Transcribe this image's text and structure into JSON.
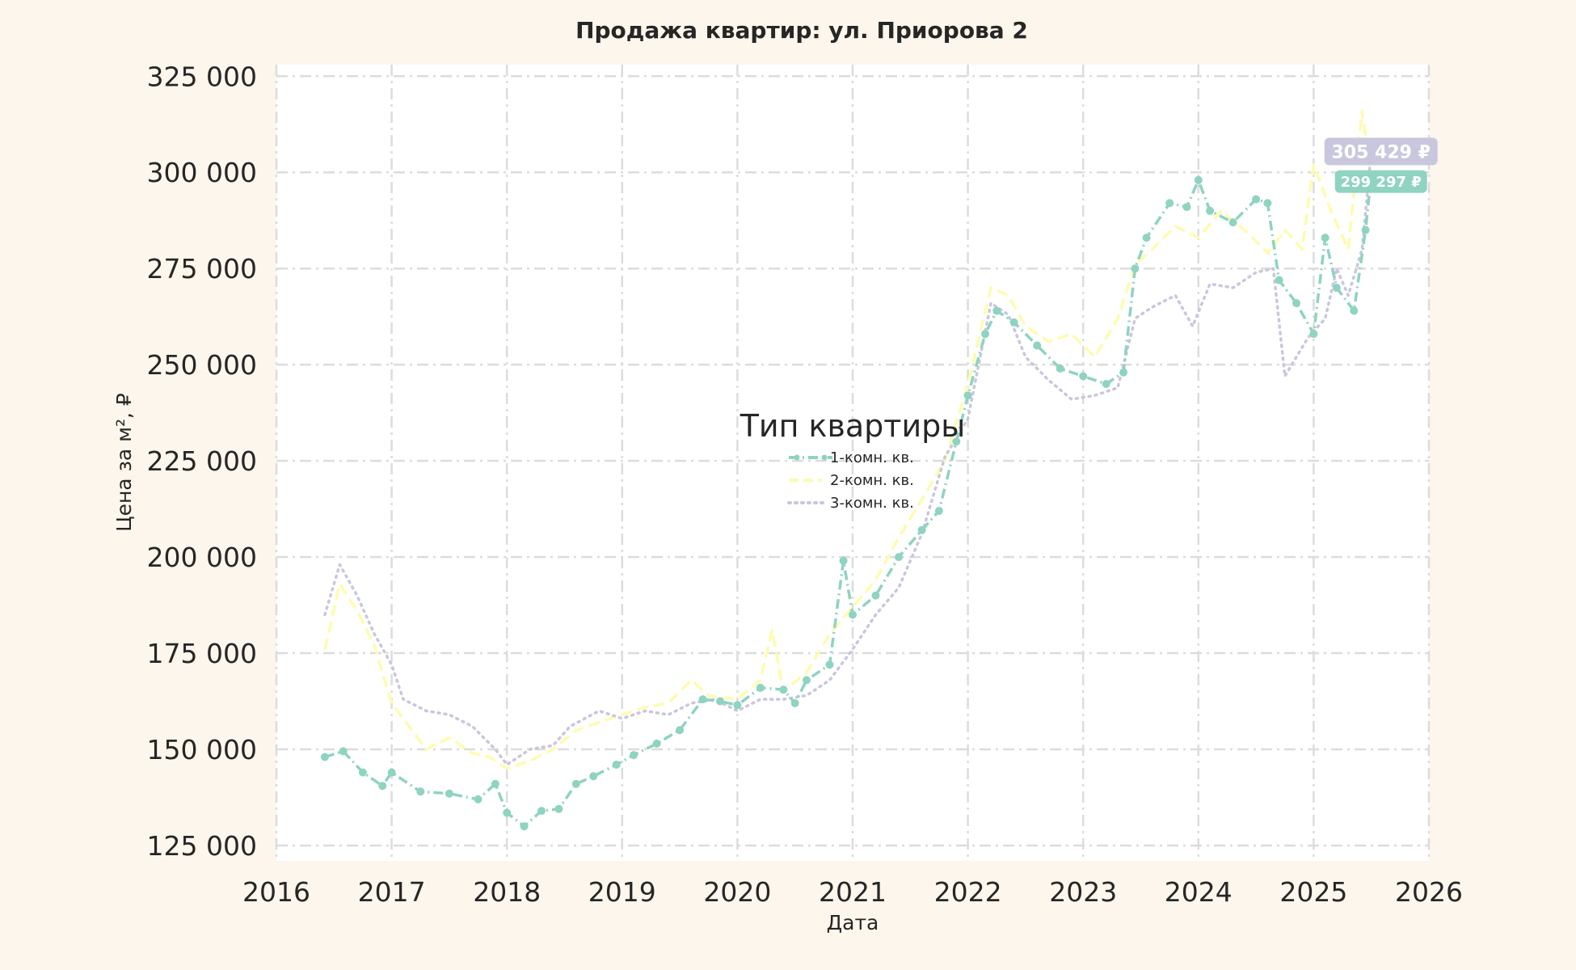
{
  "colors": {
    "background": "#fdf6ec",
    "plot_background": "#ffffff",
    "grid": "#dcdcdc",
    "text": "#262626"
  },
  "chart_data": {
    "type": "line",
    "title": "Продажа квартир: ул. Приорова 2",
    "xlabel": "Дата",
    "ylabel": "Цена за м², ₽",
    "xlim": [
      2016,
      2026
    ],
    "ylim": [
      121000,
      328000
    ],
    "x_ticks": [
      "2016",
      "2017",
      "2018",
      "2019",
      "2020",
      "2021",
      "2022",
      "2023",
      "2024",
      "2025",
      "2026"
    ],
    "y_ticks": [
      "125 000",
      "150 000",
      "175 000",
      "200 000",
      "225 000",
      "250 000",
      "275 000",
      "300 000",
      "325 000"
    ],
    "grid": true,
    "legend": {
      "title": "Тип квартиры",
      "placement": "center"
    },
    "series": [
      {
        "name": "1-комн. кв.",
        "color": "#8fd3c1",
        "style": "dashdot-markers",
        "points": [
          [
            2016.42,
            148000
          ],
          [
            2016.58,
            149500
          ],
          [
            2016.75,
            144000
          ],
          [
            2016.92,
            140500
          ],
          [
            2017.0,
            144000
          ],
          [
            2017.25,
            139000
          ],
          [
            2017.5,
            138500
          ],
          [
            2017.75,
            137000
          ],
          [
            2017.9,
            141000
          ],
          [
            2018.0,
            133500
          ],
          [
            2018.15,
            130000
          ],
          [
            2018.3,
            134000
          ],
          [
            2018.45,
            134500
          ],
          [
            2018.6,
            141000
          ],
          [
            2018.75,
            143000
          ],
          [
            2018.95,
            146000
          ],
          [
            2019.1,
            148500
          ],
          [
            2019.3,
            151500
          ],
          [
            2019.5,
            155000
          ],
          [
            2019.7,
            163000
          ],
          [
            2019.85,
            162500
          ],
          [
            2020.0,
            161500
          ],
          [
            2020.2,
            166000
          ],
          [
            2020.4,
            165500
          ],
          [
            2020.5,
            162000
          ],
          [
            2020.6,
            168000
          ],
          [
            2020.8,
            172000
          ],
          [
            2020.92,
            199000
          ],
          [
            2021.0,
            185000
          ],
          [
            2021.2,
            190000
          ],
          [
            2021.4,
            200000
          ],
          [
            2021.6,
            207000
          ],
          [
            2021.75,
            212000
          ],
          [
            2021.9,
            230000
          ],
          [
            2022.0,
            242000
          ],
          [
            2022.15,
            258000
          ],
          [
            2022.25,
            264000
          ],
          [
            2022.4,
            261000
          ],
          [
            2022.6,
            255000
          ],
          [
            2022.8,
            249000
          ],
          [
            2023.0,
            247000
          ],
          [
            2023.2,
            245000
          ],
          [
            2023.35,
            248000
          ],
          [
            2023.45,
            275000
          ],
          [
            2023.55,
            283000
          ],
          [
            2023.75,
            292000
          ],
          [
            2023.9,
            291000
          ],
          [
            2024.0,
            298000
          ],
          [
            2024.1,
            290000
          ],
          [
            2024.3,
            287000
          ],
          [
            2024.5,
            293000
          ],
          [
            2024.6,
            292000
          ],
          [
            2024.7,
            272000
          ],
          [
            2024.85,
            266000
          ],
          [
            2025.0,
            258000
          ],
          [
            2025.1,
            283000
          ],
          [
            2025.2,
            270000
          ],
          [
            2025.35,
            264000
          ],
          [
            2025.45,
            285000
          ],
          [
            2025.5,
            299297
          ]
        ],
        "end_label": "299 297 ₽"
      },
      {
        "name": "2-комн. кв.",
        "color": "#fdfcb0",
        "style": "dashed",
        "points": [
          [
            2016.42,
            176000
          ],
          [
            2016.55,
            193000
          ],
          [
            2016.7,
            186000
          ],
          [
            2016.85,
            177000
          ],
          [
            2017.0,
            162000
          ],
          [
            2017.15,
            156000
          ],
          [
            2017.3,
            150000
          ],
          [
            2017.5,
            153000
          ],
          [
            2017.7,
            149000
          ],
          [
            2017.85,
            148000
          ],
          [
            2018.0,
            145000
          ],
          [
            2018.2,
            147000
          ],
          [
            2018.4,
            150000
          ],
          [
            2018.6,
            155000
          ],
          [
            2018.8,
            157000
          ],
          [
            2019.0,
            159000
          ],
          [
            2019.2,
            161000
          ],
          [
            2019.4,
            162000
          ],
          [
            2019.6,
            168000
          ],
          [
            2019.75,
            164000
          ],
          [
            2020.0,
            163000
          ],
          [
            2020.2,
            168000
          ],
          [
            2020.3,
            181000
          ],
          [
            2020.4,
            165000
          ],
          [
            2020.6,
            170000
          ],
          [
            2020.8,
            180000
          ],
          [
            2021.0,
            187000
          ],
          [
            2021.2,
            194000
          ],
          [
            2021.4,
            205000
          ],
          [
            2021.6,
            215000
          ],
          [
            2021.8,
            225000
          ],
          [
            2022.0,
            245000
          ],
          [
            2022.2,
            270000
          ],
          [
            2022.35,
            268000
          ],
          [
            2022.5,
            260000
          ],
          [
            2022.7,
            256000
          ],
          [
            2022.9,
            258000
          ],
          [
            2023.1,
            252000
          ],
          [
            2023.3,
            262000
          ],
          [
            2023.45,
            276000
          ],
          [
            2023.6,
            280000
          ],
          [
            2023.8,
            286000
          ],
          [
            2024.0,
            283000
          ],
          [
            2024.2,
            290000
          ],
          [
            2024.4,
            285000
          ],
          [
            2024.6,
            279000
          ],
          [
            2024.75,
            285000
          ],
          [
            2024.9,
            280000
          ],
          [
            2025.0,
            302000
          ],
          [
            2025.15,
            290000
          ],
          [
            2025.3,
            280000
          ],
          [
            2025.42,
            316000
          ],
          [
            2025.5,
            298000
          ]
        ]
      },
      {
        "name": "3-комн. кв.",
        "color": "#c9c7de",
        "style": "dotted",
        "points": [
          [
            2016.42,
            185000
          ],
          [
            2016.55,
            198000
          ],
          [
            2016.7,
            190000
          ],
          [
            2016.85,
            180000
          ],
          [
            2017.0,
            172000
          ],
          [
            2017.1,
            163000
          ],
          [
            2017.3,
            160000
          ],
          [
            2017.5,
            159000
          ],
          [
            2017.7,
            156000
          ],
          [
            2017.9,
            150000
          ],
          [
            2018.0,
            146000
          ],
          [
            2018.2,
            150000
          ],
          [
            2018.4,
            151000
          ],
          [
            2018.55,
            156000
          ],
          [
            2018.8,
            160000
          ],
          [
            2019.0,
            158000
          ],
          [
            2019.2,
            160000
          ],
          [
            2019.4,
            159000
          ],
          [
            2019.6,
            162000
          ],
          [
            2019.8,
            163000
          ],
          [
            2020.0,
            160000
          ],
          [
            2020.2,
            163000
          ],
          [
            2020.4,
            163000
          ],
          [
            2020.6,
            164000
          ],
          [
            2020.8,
            168000
          ],
          [
            2021.0,
            176000
          ],
          [
            2021.2,
            185000
          ],
          [
            2021.4,
            192000
          ],
          [
            2021.6,
            206000
          ],
          [
            2021.8,
            226000
          ],
          [
            2022.0,
            236000
          ],
          [
            2022.2,
            266000
          ],
          [
            2022.35,
            263000
          ],
          [
            2022.5,
            252000
          ],
          [
            2022.7,
            246000
          ],
          [
            2022.9,
            241000
          ],
          [
            2023.1,
            242000
          ],
          [
            2023.3,
            244000
          ],
          [
            2023.45,
            262000
          ],
          [
            2023.6,
            265000
          ],
          [
            2023.8,
            268000
          ],
          [
            2023.95,
            260000
          ],
          [
            2024.1,
            271000
          ],
          [
            2024.3,
            270000
          ],
          [
            2024.5,
            274000
          ],
          [
            2024.65,
            275000
          ],
          [
            2024.75,
            247000
          ],
          [
            2024.85,
            252000
          ],
          [
            2024.95,
            257000
          ],
          [
            2025.1,
            262000
          ],
          [
            2025.2,
            275000
          ],
          [
            2025.3,
            268000
          ],
          [
            2025.42,
            280000
          ],
          [
            2025.5,
            305429
          ]
        ],
        "end_label": "305 429 ₽"
      }
    ]
  }
}
